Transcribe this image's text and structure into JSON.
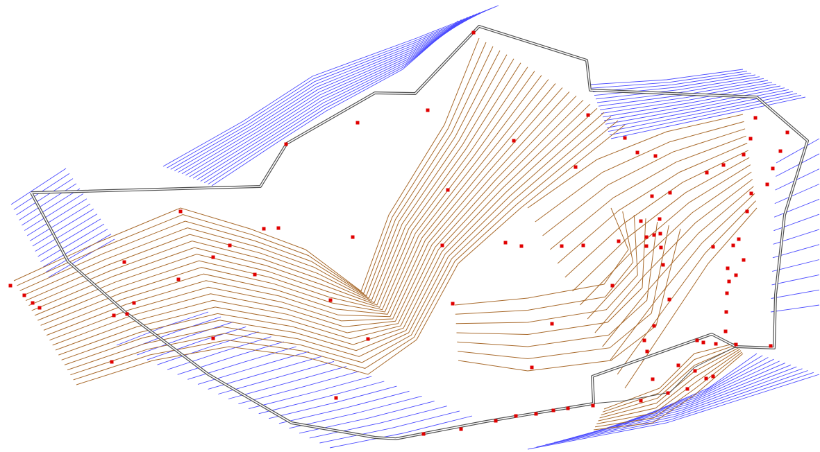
{
  "map": {
    "kind": "topographic contour survey plan",
    "colors": {
      "background": "#ffffff",
      "outer_contours": "#4b4bff",
      "inner_contours": "#a86a2c",
      "boundary": "#505050",
      "survey_points": "#e00000"
    },
    "layers": [
      {
        "name": "outer-contours",
        "color": "blue"
      },
      {
        "name": "inner-contours",
        "color": "brown"
      },
      {
        "name": "site-boundary",
        "style": "double line"
      },
      {
        "name": "survey-points",
        "marker": "red square"
      }
    ]
  }
}
